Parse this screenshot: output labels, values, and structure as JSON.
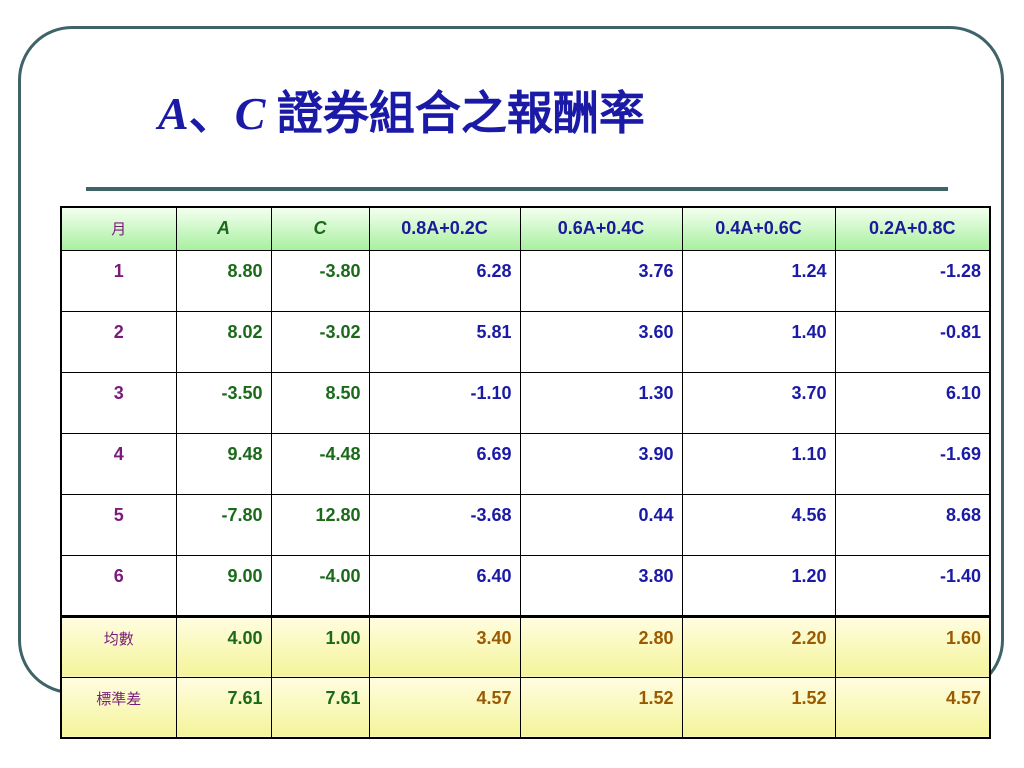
{
  "slide": {
    "title_a": "A",
    "title_sep": "、",
    "title_c": "C",
    "title_rest": " 證券組合之報酬率"
  },
  "table": {
    "headers": [
      "月",
      "A",
      "C",
      "0.8A+0.2C",
      "0.6A+0.4C",
      "0.4A+0.6C",
      "0.2A+0.8C"
    ],
    "rows": [
      [
        "1",
        "8.80",
        "-3.80",
        "6.28",
        "3.76",
        "1.24",
        "-1.28"
      ],
      [
        "2",
        "8.02",
        "-3.02",
        "5.81",
        "3.60",
        "1.40",
        "-0.81"
      ],
      [
        "3",
        "-3.50",
        "8.50",
        "-1.10",
        "1.30",
        "3.70",
        "6.10"
      ],
      [
        "4",
        "9.48",
        "-4.48",
        "6.69",
        "3.90",
        "1.10",
        "-1.69"
      ],
      [
        "5",
        "-7.80",
        "12.80",
        "-3.68",
        "0.44",
        "4.56",
        "8.68"
      ],
      [
        "6",
        "9.00",
        "-4.00",
        "6.40",
        "3.80",
        "1.20",
        "-1.40"
      ]
    ],
    "stats": [
      [
        "均數",
        "4.00",
        "1.00",
        "3.40",
        "2.80",
        "2.20",
        "1.60"
      ],
      [
        "標準差",
        "7.61",
        "7.61",
        "4.57",
        "1.52",
        "1.52",
        "4.57"
      ]
    ]
  },
  "colors": {
    "title": "#1a1aa6",
    "frame": "#3f6468",
    "header_bg": "#a8f0a0",
    "stat_bg": "#f4f49a"
  }
}
